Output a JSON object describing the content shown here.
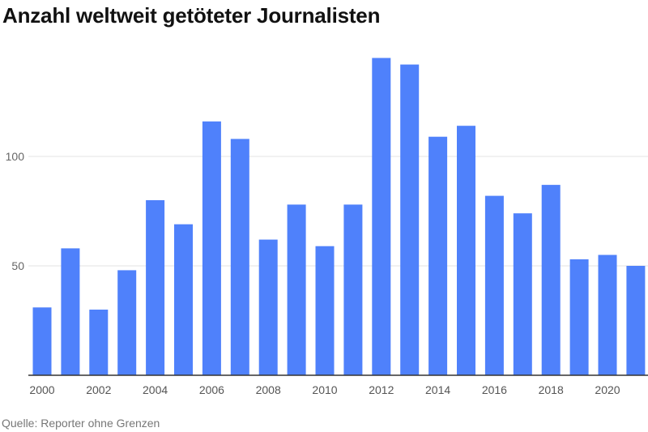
{
  "title": "Anzahl weltweit getöteter Journalisten",
  "source": "Quelle: Reporter ohne Grenzen",
  "colors": {
    "bar": "#4f81fb",
    "grid": "#e3e3e3",
    "axis": "#333333"
  },
  "chart_data": {
    "type": "bar",
    "title": "Anzahl weltweit getöteter Journalisten",
    "xlabel": "",
    "ylabel": "",
    "ylim": [
      0,
      150
    ],
    "yticks": [
      50,
      100
    ],
    "grid": true,
    "x_tick_labels": [
      "2000",
      "2002",
      "2004",
      "2006",
      "2008",
      "2010",
      "2012",
      "2014",
      "2016",
      "2018",
      "2020"
    ],
    "categories": [
      "2000",
      "2001",
      "2002",
      "2003",
      "2004",
      "2005",
      "2006",
      "2007",
      "2008",
      "2009",
      "2010",
      "2011",
      "2012",
      "2013",
      "2014",
      "2015",
      "2016",
      "2017",
      "2018",
      "2019",
      "2020",
      "2021"
    ],
    "values": [
      31,
      58,
      30,
      48,
      80,
      69,
      116,
      108,
      62,
      78,
      59,
      78,
      145,
      142,
      109,
      114,
      82,
      74,
      87,
      53,
      55,
      50
    ]
  }
}
